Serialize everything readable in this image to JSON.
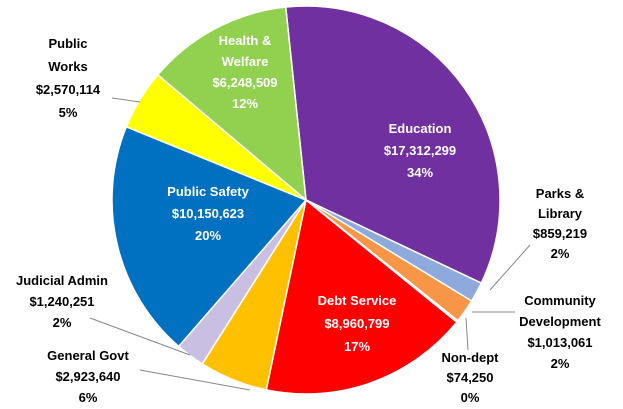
{
  "chart_data": {
    "type": "pie",
    "categories": [
      "Education",
      "Parks & Library",
      "Community Development",
      "Non-dept",
      "Debt Service",
      "General Govt",
      "Judicial Admin",
      "Public Safety",
      "Public Works",
      "Health & Welfare"
    ],
    "values": [
      17312299,
      859219,
      1013061,
      74250,
      8960799,
      2923640,
      1240251,
      10150623,
      2570114,
      6248509
    ],
    "value_labels": [
      "$17,312,299",
      "$859,219",
      "$1,013,061",
      "$74,250",
      "$8,960,799",
      "$2,923,640",
      "$1,240,251",
      "$10,150,623",
      "$2,570,114",
      "$6,248,509"
    ],
    "percent_labels": [
      "34%",
      "2%",
      "2%",
      "0%",
      "17%",
      "6%",
      "2%",
      "20%",
      "5%",
      "12%"
    ],
    "colors": [
      "#7030a0",
      "#8ea9db",
      "#f79646",
      "#e8e8e8",
      "#ff0000",
      "#ffc000",
      "#c9bfe3",
      "#0070c0",
      "#ffff00",
      "#92d050"
    ]
  }
}
